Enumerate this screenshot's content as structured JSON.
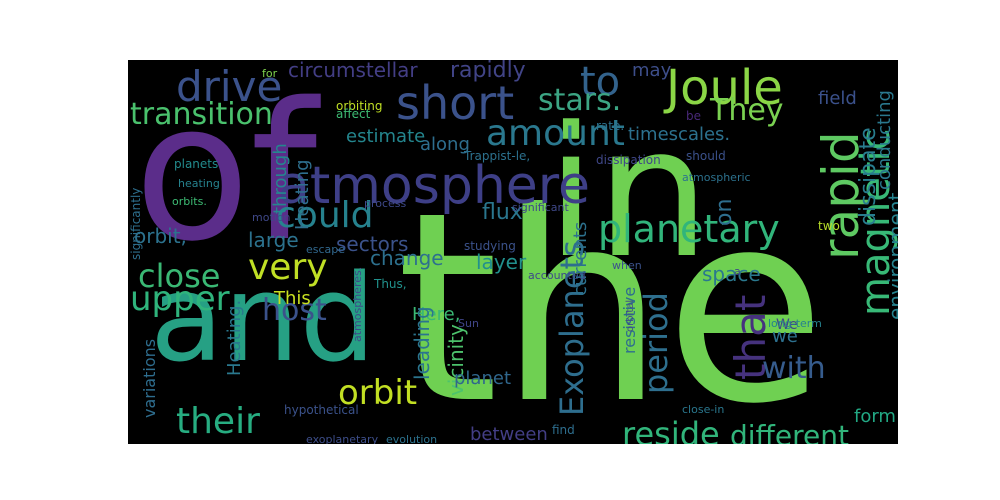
{
  "colors": {
    "background": "#000000",
    "page": "#ffffff"
  },
  "words": [
    {
      "text": "the",
      "color": "#6fd052"
    },
    {
      "text": "of",
      "color": "#5b2d8a"
    },
    {
      "text": "in",
      "color": "#6fd052"
    },
    {
      "text": "and",
      "color": "#26a084"
    },
    {
      "text": "atmosphere",
      "color": "#3e3f87"
    },
    {
      "text": "Joule",
      "color": "#8bd646"
    },
    {
      "text": "short",
      "color": "#3b528b"
    },
    {
      "text": "drive",
      "color": "#3b528b"
    },
    {
      "text": "to",
      "color": "#33638d"
    },
    {
      "text": "rapid",
      "color": "#5ec962"
    },
    {
      "text": "amount",
      "color": "#2a788e"
    },
    {
      "text": "stars.",
      "color": "#3ca584"
    },
    {
      "text": "They",
      "color": "#7ad151"
    },
    {
      "text": "transition",
      "color": "#4ac16d"
    },
    {
      "text": "could",
      "color": "#26828e"
    },
    {
      "text": "planetary",
      "color": "#31b57b"
    },
    {
      "text": "magnetic",
      "color": "#38b977"
    },
    {
      "text": "very",
      "color": "#c0df25"
    },
    {
      "text": "upper",
      "color": "#2fb47c"
    },
    {
      "text": "close",
      "color": "#3ab874"
    },
    {
      "text": "host",
      "color": "#3b528b"
    },
    {
      "text": "their",
      "color": "#27ad81"
    },
    {
      "text": "orbit",
      "color": "#c2df23"
    },
    {
      "text": "that",
      "color": "#46327e"
    },
    {
      "text": "with",
      "color": "#365c8d"
    },
    {
      "text": "Exoplanets",
      "color": "#2e6e8e"
    },
    {
      "text": "period",
      "color": "#2e6f8e"
    },
    {
      "text": "reside",
      "color": "#31b57b"
    },
    {
      "text": "different",
      "color": "#31b57b"
    },
    {
      "text": "rapidly",
      "color": "#414487"
    },
    {
      "text": "circumstellar",
      "color": "#433e85"
    },
    {
      "text": "may",
      "color": "#3d4e8a"
    },
    {
      "text": "field",
      "color": "#3b518b"
    },
    {
      "text": "conducting",
      "color": "#2a788e"
    },
    {
      "text": "dissipate",
      "color": "#287d8e"
    },
    {
      "text": "environment",
      "color": "#26828e"
    },
    {
      "text": "timescales.",
      "color": "#2c718e"
    },
    {
      "text": "estimate",
      "color": "#24868e"
    },
    {
      "text": "along",
      "color": "#2e6e8e"
    },
    {
      "text": "through",
      "color": "#24868e"
    },
    {
      "text": "Heating",
      "color": "#2e6f8e"
    },
    {
      "text": "large",
      "color": "#2c728e"
    },
    {
      "text": "sectors",
      "color": "#3b528b"
    },
    {
      "text": "flux",
      "color": "#2a768e"
    },
    {
      "text": "layer",
      "color": "#21908d"
    },
    {
      "text": "change",
      "color": "#2d708e"
    },
    {
      "text": "orbit,",
      "color": "#2c728e"
    },
    {
      "text": "This",
      "color": "#c8e020"
    },
    {
      "text": "space",
      "color": "#2a788e"
    },
    {
      "text": "on",
      "color": "#2e6e8e"
    },
    {
      "text": "Here,",
      "color": "#3ab874"
    },
    {
      "text": "currents",
      "color": "#2c718e"
    },
    {
      "text": "resistive",
      "color": "#2e6e8e"
    },
    {
      "text": "leading",
      "color": "#2b758e"
    },
    {
      "text": "vicinity",
      "color": "#4cc26c"
    },
    {
      "text": "planet",
      "color": "#30678d"
    },
    {
      "text": "between",
      "color": "#433e85"
    },
    {
      "text": "form",
      "color": "#22a884"
    },
    {
      "text": "variations",
      "color": "#2e6d8e"
    },
    {
      "text": "Heating.",
      "color": "#2a788e"
    },
    {
      "text": "we",
      "color": "#2d708e"
    },
    {
      "text": "We",
      "color": "#3f4889"
    },
    {
      "text": "planets",
      "color": "#228b8d"
    },
    {
      "text": "heating",
      "color": "#26828e"
    },
    {
      "text": "orbits.",
      "color": "#3dbc74"
    },
    {
      "text": "significantly",
      "color": "#2e6f8e"
    },
    {
      "text": "orbiting",
      "color": "#c0df25"
    },
    {
      "text": "affect",
      "color": "#3dbc74"
    },
    {
      "text": "for",
      "color": "#7fd34e"
    },
    {
      "text": "rate.",
      "color": "#2c728e"
    },
    {
      "text": "Trappist-le,",
      "color": "#2c718e"
    },
    {
      "text": "dissipation",
      "color": "#3f4788"
    },
    {
      "text": "should",
      "color": "#3b518b"
    },
    {
      "text": "be",
      "color": "#482878"
    },
    {
      "text": "significant",
      "color": "#3f4889"
    },
    {
      "text": "process",
      "color": "#3e4989"
    },
    {
      "text": "atmospheric",
      "color": "#2c728e"
    },
    {
      "text": "motion",
      "color": "#3f4889"
    },
    {
      "text": "escape",
      "color": "#31688e"
    },
    {
      "text": "studying",
      "color": "#3b528b"
    },
    {
      "text": "accounted",
      "color": "#3e4a89"
    },
    {
      "text": "two",
      "color": "#b8de29"
    },
    {
      "text": "when",
      "color": "#3b528b"
    },
    {
      "text": "a",
      "color": "#3e4989"
    },
    {
      "text": "Thus,",
      "color": "#21918c"
    },
    {
      "text": "long-term",
      "color": "#26828e"
    },
    {
      "text": "Sun",
      "color": "#404588"
    },
    {
      "text": "orbital",
      "color": "#3f4889"
    },
    {
      "text": "atmospheres.",
      "color": "#3e4989"
    },
    {
      "text": "hypothetical",
      "color": "#3b528b"
    },
    {
      "text": "find",
      "color": "#2e6e8e"
    },
    {
      "text": "close-in",
      "color": "#2a778e"
    },
    {
      "text": "exoplanetary",
      "color": "#3d4e8a"
    },
    {
      "text": "evolution",
      "color": "#2c728e"
    }
  ]
}
